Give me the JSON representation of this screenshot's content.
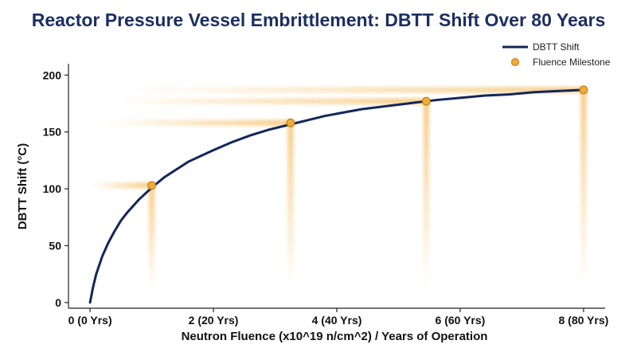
{
  "chart_data": {
    "type": "line",
    "title": "Reactor Pressure Vessel Embrittlement: DBTT Shift Over 80 Years",
    "xlabel": "Neutron Fluence (x10^19 n/cm^2) / Years of Operation",
    "ylabel": "DBTT Shift (°C)",
    "xlim": [
      -0.35,
      8.35
    ],
    "ylim": [
      -5,
      210
    ],
    "x_ticks": [
      {
        "value": 0,
        "label": "0 (0 Yrs)"
      },
      {
        "value": 2,
        "label": "2 (20 Yrs)"
      },
      {
        "value": 4,
        "label": "4 (40 Yrs)"
      },
      {
        "value": 6,
        "label": "6 (60 Yrs)"
      },
      {
        "value": 8,
        "label": "8 (80 Yrs)"
      }
    ],
    "y_ticks": [
      0,
      50,
      100,
      150,
      200
    ],
    "grid": false,
    "legend_position": "top-right",
    "series": [
      {
        "name": "DBTT Shift",
        "kind": "curve",
        "color": "#13265c",
        "x": [
          0,
          0.05,
          0.1,
          0.2,
          0.3,
          0.4,
          0.5,
          0.6,
          0.7,
          0.8,
          0.9,
          1.0,
          1.2,
          1.4,
          1.6,
          1.8,
          2.0,
          2.3,
          2.6,
          2.9,
          3.2,
          3.5,
          3.8,
          4.1,
          4.4,
          4.7,
          5.0,
          5.3,
          5.6,
          6.0,
          6.4,
          6.8,
          7.2,
          7.6,
          8.0
        ],
        "y": [
          0,
          14,
          25,
          41,
          53,
          63,
          72,
          79,
          85,
          91,
          96,
          101,
          110,
          117,
          124,
          129,
          134,
          141,
          147,
          152,
          156,
          160,
          164,
          167,
          170,
          172,
          174,
          176,
          178,
          180,
          182,
          183,
          185,
          186,
          187
        ]
      },
      {
        "name": "Fluence Milestone",
        "kind": "points",
        "color": "#f0ad3c",
        "x": [
          1.0,
          3.25,
          5.45,
          8.0
        ],
        "y": [
          103,
          158,
          177,
          187
        ]
      }
    ]
  }
}
